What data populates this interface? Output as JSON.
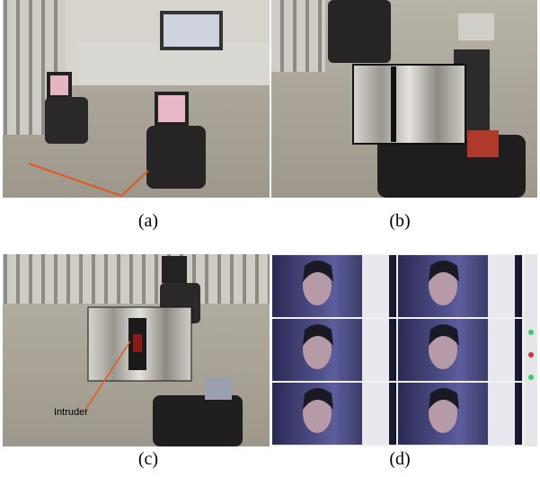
{
  "panels": [
    {
      "caption": "(a)"
    },
    {
      "caption": "(b)"
    },
    {
      "caption": "(c)",
      "annotation": "Intruder"
    },
    {
      "caption": "(d)"
    }
  ]
}
